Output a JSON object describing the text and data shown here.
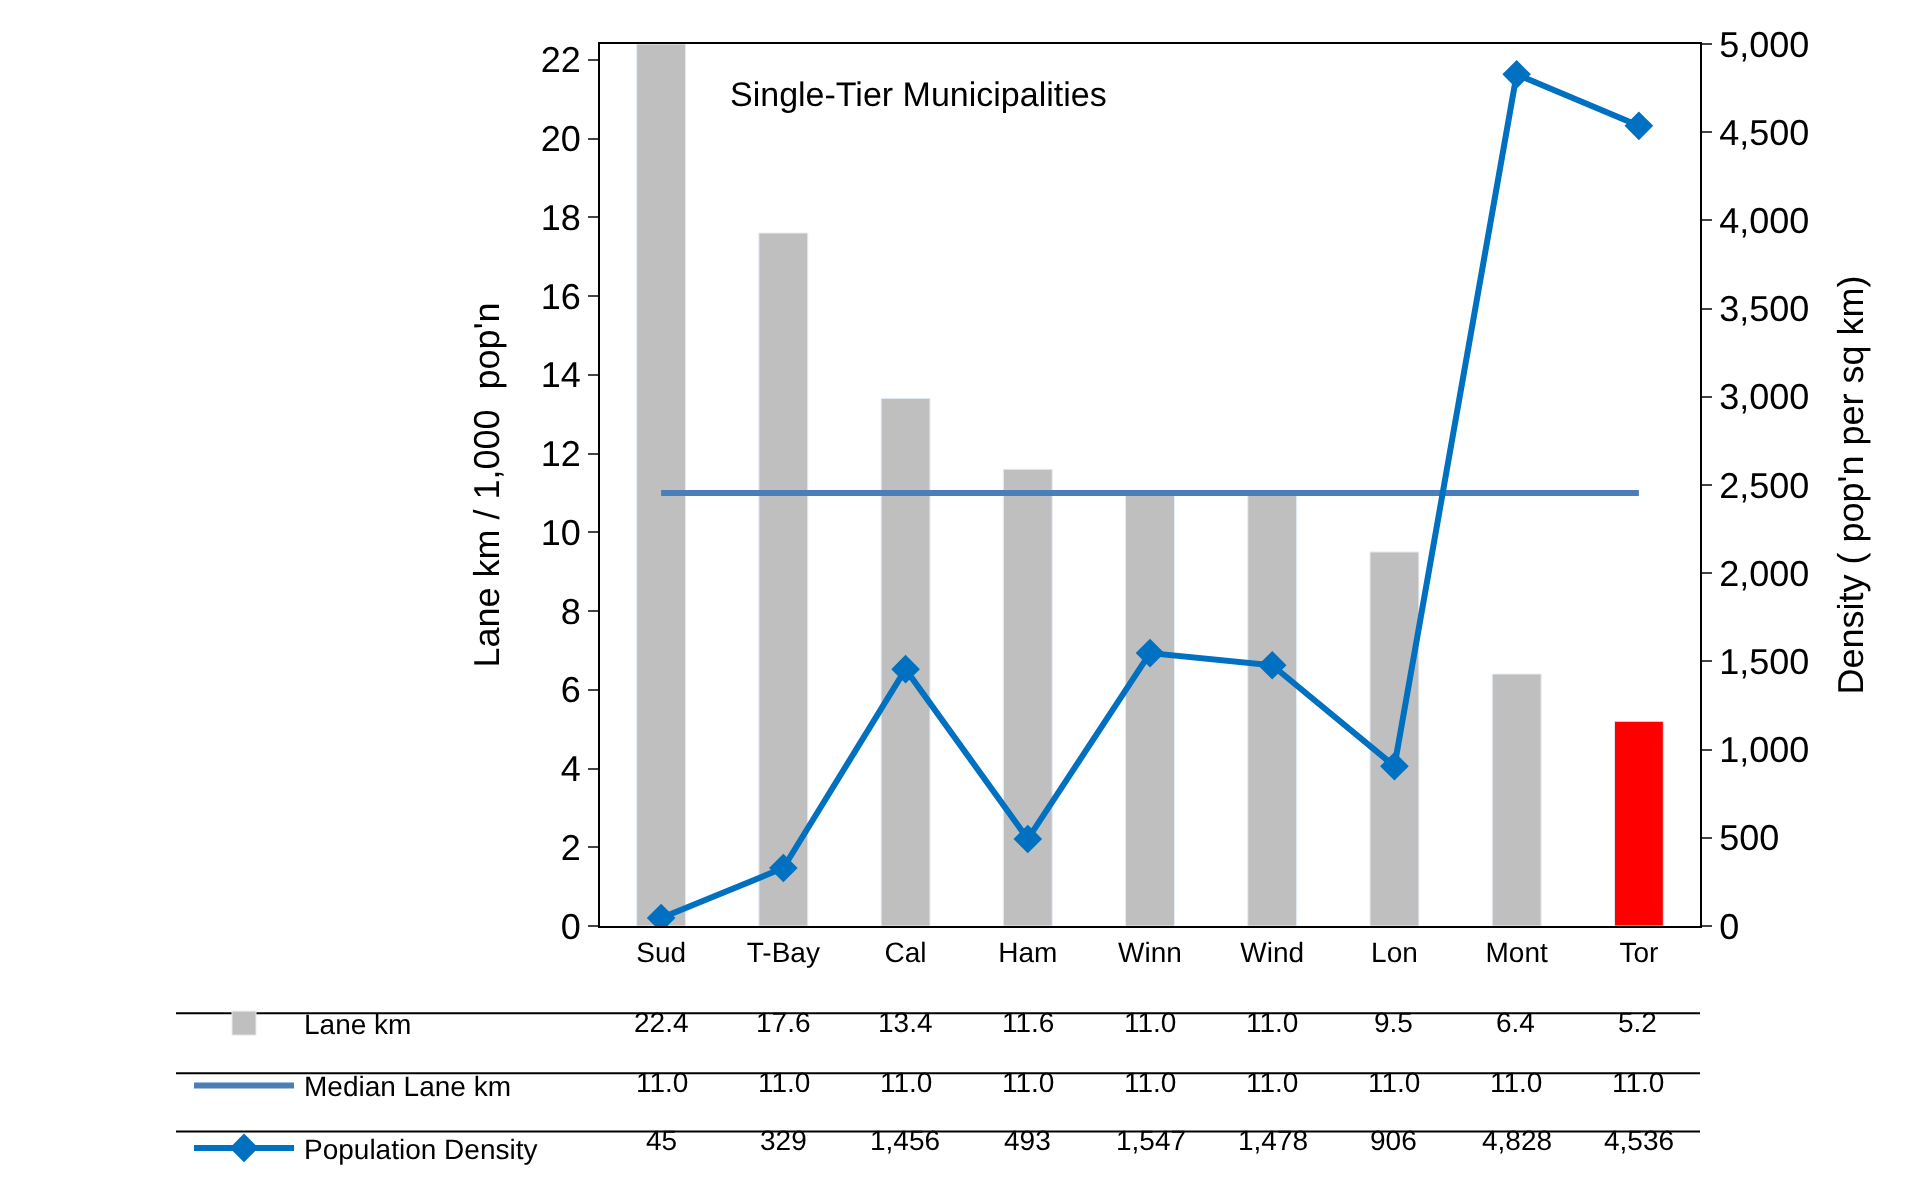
{
  "chart_data": {
    "type": "bar",
    "title": "Single-Tier Municipalities",
    "categories": [
      "Sud",
      "T-Bay",
      "Cal",
      "Ham",
      "Winn",
      "Wind",
      "Lon",
      "Mont",
      "Tor"
    ],
    "ylabel": "Lane km / 1,000  pop'n",
    "y2label": "Density ( pop'n per sq km)",
    "ylim": [
      0,
      22.4
    ],
    "yticks": [
      0,
      2,
      4,
      6,
      8,
      10,
      12,
      14,
      16,
      18,
      20,
      22
    ],
    "y2lim": [
      0,
      5000
    ],
    "y2ticks": [
      {
        "value": 0,
        "label": "0"
      },
      {
        "value": 500,
        "label": "500"
      },
      {
        "value": 1000,
        "label": "1,000"
      },
      {
        "value": 1500,
        "label": "1,500"
      },
      {
        "value": 2000,
        "label": "2,000"
      },
      {
        "value": 2500,
        "label": "2,500"
      },
      {
        "value": 3000,
        "label": "3,000"
      },
      {
        "value": 3500,
        "label": "3,500"
      },
      {
        "value": 4000,
        "label": "4,000"
      },
      {
        "value": 4500,
        "label": "4,500"
      },
      {
        "value": 5000,
        "label": "5,000"
      }
    ],
    "grid": false,
    "legend": "bottom",
    "series": [
      {
        "name": "Lane km",
        "colors": [
          "#bfbfbf",
          "#bfbfbf",
          "#bfbfbf",
          "#bfbfbf",
          "#bfbfbf",
          "#bfbfbf",
          "#bfbfbf",
          "#bfbfbf",
          "#ff0000"
        ],
        "color": "#bfbfbf",
        "values": [
          22.4,
          17.6,
          13.4,
          11.6,
          11.0,
          11.0,
          9.5,
          6.4,
          5.2
        ],
        "value_labels": [
          "22.4",
          "17.6",
          "13.4",
          "11.6",
          "11.0",
          "11.0",
          "9.5",
          "6.4",
          "5.2"
        ]
      },
      {
        "name": "Median Lane km",
        "type": "line",
        "color": "#4a7ebb",
        "marker": "none",
        "values": [
          11.0,
          11.0,
          11.0,
          11.0,
          11.0,
          11.0,
          11.0,
          11.0,
          11.0
        ],
        "value_labels": [
          "11.0",
          "11.0",
          "11.0",
          "11.0",
          "11.0",
          "11.0",
          "11.0",
          "11.0",
          "11.0"
        ]
      },
      {
        "name": "Population Density",
        "type": "line",
        "axis": "y2",
        "color": "#0070c0",
        "marker": "diamond",
        "values": [
          45,
          329,
          1456,
          493,
          1547,
          1478,
          906,
          4828,
          4536
        ],
        "value_labels": [
          "45",
          "329",
          "1,456",
          "493",
          "1,547",
          "1,478",
          "906",
          "4,828",
          "4,536"
        ]
      }
    ]
  }
}
